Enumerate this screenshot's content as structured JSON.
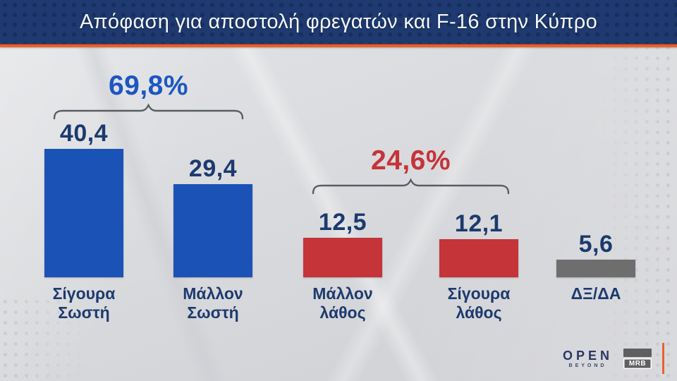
{
  "header": {
    "title": "Απόφαση για αποστολή φρεγατών και F-16 στην Κύπρο"
  },
  "chart_data": {
    "type": "bar",
    "title": "Απόφαση για αποστολή φρεγατών και F-16 στην Κύπρο",
    "categories": [
      "Σίγουρα Σωστή",
      "Μάλλον Σωστή",
      "Μάλλον λάθος",
      "Σίγουρα λάθος",
      "ΔΞ/ΔΑ"
    ],
    "values": [
      40.4,
      29.4,
      12.5,
      12.1,
      5.6
    ],
    "value_labels": [
      "40,4",
      "29,4",
      "12,5",
      "12,1",
      "5,6"
    ],
    "bar_colors": [
      "#1b52b5",
      "#1b52b5",
      "#c43439",
      "#c43439",
      "#6e6e6e"
    ],
    "groups": [
      {
        "label": "69,8%",
        "color": "#1d56c2",
        "from": 0,
        "to": 1
      },
      {
        "label": "24,6%",
        "color": "#c43439",
        "from": 2,
        "to": 3
      }
    ],
    "xlabel": "",
    "ylabel": "",
    "ylim": [
      0,
      45
    ],
    "grid": false,
    "legend": false
  },
  "footer": {
    "open_logo": "OPEN",
    "open_tagline": "BEYOND",
    "mrb_logo": "MRB"
  },
  "colors": {
    "header_bg": "#1e3a70",
    "accent_orange": "#e8622f",
    "value_text": "#1c3a6e",
    "bracket": "#585d64",
    "blue": "#1b52b5",
    "red": "#c43439",
    "gray": "#6e6e6e"
  }
}
